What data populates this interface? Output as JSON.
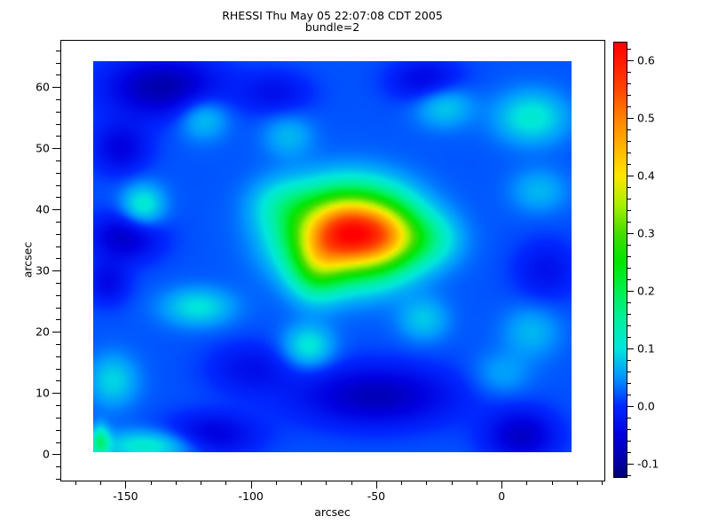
{
  "figure": {
    "background": "#ffffff",
    "text_color": "#000000"
  },
  "chart_data": {
    "type": "heatmap",
    "title": "RHESSI Thu May 05 22:07:08 CDT 2005",
    "subtitle": "bundle=2",
    "xlabel": "arcsec",
    "ylabel": "arcsec",
    "xlim": [
      -176,
      41
    ],
    "ylim": [
      -4.3,
      67.7
    ],
    "x_ticks": [
      {
        "v": -150,
        "label": "-150"
      },
      {
        "v": -100,
        "label": "-100"
      },
      {
        "v": -50,
        "label": "-50"
      },
      {
        "v": 0,
        "label": "0"
      }
    ],
    "x_minor": {
      "from": -170,
      "to": 40,
      "step": 10
    },
    "y_ticks": [
      {
        "v": 0,
        "label": "0"
      },
      {
        "v": 10,
        "label": "10"
      },
      {
        "v": 20,
        "label": "20"
      },
      {
        "v": 30,
        "label": "30"
      },
      {
        "v": 40,
        "label": "40"
      },
      {
        "v": 50,
        "label": "50"
      },
      {
        "v": 60,
        "label": "60"
      }
    ],
    "y_minor": {
      "from": -4,
      "to": 66,
      "step": 2
    },
    "image_extent": {
      "x0": -162.8,
      "x1": 28.0,
      "y0": 0.3,
      "y1": 64.2
    },
    "colorbar": {
      "vmin": -0.123,
      "vmax": 0.631,
      "ticks": [
        {
          "v": -0.1,
          "label": "-0.1"
        },
        {
          "v": 0.0,
          "label": "0.0"
        },
        {
          "v": 0.1,
          "label": "0.1"
        },
        {
          "v": 0.2,
          "label": "0.2"
        },
        {
          "v": 0.3,
          "label": "0.3"
        },
        {
          "v": 0.4,
          "label": "0.4"
        },
        {
          "v": 0.5,
          "label": "0.5"
        },
        {
          "v": 0.6,
          "label": "0.6"
        }
      ],
      "minor": {
        "from": -0.12,
        "to": 0.62,
        "step": 0.02
      }
    },
    "colormap": [
      [
        -0.123,
        "#000078"
      ],
      [
        -0.1,
        "#0000A0"
      ],
      [
        -0.05,
        "#0000E0"
      ],
      [
        0.0,
        "#0028FF"
      ],
      [
        0.05,
        "#0096FF"
      ],
      [
        0.1,
        "#00E6DC"
      ],
      [
        0.15,
        "#00F0A0"
      ],
      [
        0.2,
        "#00F050"
      ],
      [
        0.25,
        "#00E600"
      ],
      [
        0.3,
        "#46DC00"
      ],
      [
        0.35,
        "#AAF000"
      ],
      [
        0.4,
        "#FFE600"
      ],
      [
        0.45,
        "#FFB400"
      ],
      [
        0.5,
        "#FF8200"
      ],
      [
        0.55,
        "#FF4600"
      ],
      [
        0.631,
        "#FF0000"
      ]
    ],
    "base_value": 0.02,
    "peak": {
      "x": -60.5,
      "y": 36,
      "value": 0.63
    },
    "blobs": [
      {
        "x": -60.5,
        "y": 36.0,
        "a": 0.6,
        "sx": 16.0,
        "sy": 4.8
      },
      {
        "x": -44.0,
        "y": 35.5,
        "a": 0.1,
        "sx": 8.0,
        "sy": 3.5
      },
      {
        "x": -29.0,
        "y": 35.0,
        "a": 0.08,
        "sx": 9.0,
        "sy": 3.0
      },
      {
        "x": -74.0,
        "y": 30.0,
        "a": 0.12,
        "sx": 7.0,
        "sy": 3.5
      },
      {
        "x": -88.0,
        "y": 41.0,
        "a": 0.06,
        "sx": 9.0,
        "sy": 3.0
      },
      {
        "x": -135.0,
        "y": 60.0,
        "a": -0.11,
        "sx": 16.0,
        "sy": 3.5
      },
      {
        "x": -152.0,
        "y": 50.0,
        "a": -0.07,
        "sx": 8.0,
        "sy": 3.0
      },
      {
        "x": -150.0,
        "y": 35.5,
        "a": -0.09,
        "sx": 10.0,
        "sy": 2.8
      },
      {
        "x": -157.0,
        "y": 28.0,
        "a": -0.06,
        "sx": 6.0,
        "sy": 2.5
      },
      {
        "x": -30.0,
        "y": 61.0,
        "a": -0.07,
        "sx": 10.0,
        "sy": 2.5
      },
      {
        "x": -90.0,
        "y": 59.0,
        "a": -0.05,
        "sx": 10.0,
        "sy": 2.5
      },
      {
        "x": -50.0,
        "y": 9.5,
        "a": -0.1,
        "sx": 22.0,
        "sy": 3.5
      },
      {
        "x": -116.0,
        "y": 3.0,
        "a": -0.08,
        "sx": 13.0,
        "sy": 2.5
      },
      {
        "x": 8.0,
        "y": 3.0,
        "a": -0.09,
        "sx": 10.0,
        "sy": 3.0
      },
      {
        "x": 18.0,
        "y": 30.0,
        "a": -0.05,
        "sx": 9.0,
        "sy": 3.5
      },
      {
        "x": -100.0,
        "y": 14.0,
        "a": -0.05,
        "sx": 12.0,
        "sy": 3.0
      },
      {
        "x": -143.0,
        "y": 40.5,
        "a": 0.1,
        "sx": 6.0,
        "sy": 2.5
      },
      {
        "x": -119.0,
        "y": 55.0,
        "a": 0.07,
        "sx": 7.0,
        "sy": 2.5
      },
      {
        "x": -85.0,
        "y": 52.0,
        "a": 0.05,
        "sx": 7.0,
        "sy": 2.5
      },
      {
        "x": -23.0,
        "y": 57.0,
        "a": 0.07,
        "sx": 8.0,
        "sy": 2.5
      },
      {
        "x": 12.0,
        "y": 55.0,
        "a": 0.09,
        "sx": 10.0,
        "sy": 3.0
      },
      {
        "x": -121.0,
        "y": 24.0,
        "a": 0.08,
        "sx": 10.0,
        "sy": 2.2
      },
      {
        "x": -77.0,
        "y": 17.5,
        "a": 0.09,
        "sx": 7.0,
        "sy": 2.5
      },
      {
        "x": -31.0,
        "y": 22.0,
        "a": 0.06,
        "sx": 7.0,
        "sy": 2.5
      },
      {
        "x": 15.0,
        "y": 43.0,
        "a": 0.05,
        "sx": 8.0,
        "sy": 2.5
      },
      {
        "x": -140.0,
        "y": 1.3,
        "a": 0.1,
        "sx": 14.0,
        "sy": 1.8
      },
      {
        "x": -160.0,
        "y": 2.0,
        "a": 0.13,
        "sx": 2.5,
        "sy": 1.8
      },
      {
        "x": -155.0,
        "y": 12.0,
        "a": 0.07,
        "sx": 7.0,
        "sy": 3.0
      },
      {
        "x": 12.0,
        "y": 20.0,
        "a": 0.05,
        "sx": 8.0,
        "sy": 3.0
      },
      {
        "x": 0.0,
        "y": 13.0,
        "a": 0.04,
        "sx": 8.0,
        "sy": 2.5
      }
    ]
  }
}
